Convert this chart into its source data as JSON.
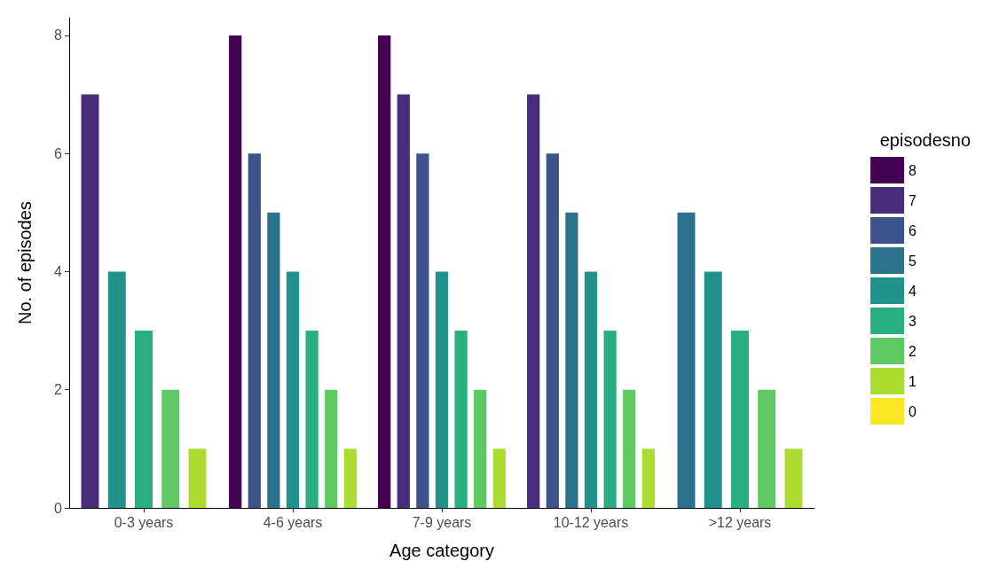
{
  "chart_data": {
    "type": "bar",
    "xlabel": "Age category",
    "ylabel": "No. of episodes",
    "legend_title": "episodesno",
    "categories": [
      "0-3 years",
      "4-6 years",
      "7-9 years",
      "10-12 years",
      ">12 years"
    ],
    "series": [
      {
        "name": "8",
        "color": "#440154",
        "values": [
          null,
          8,
          8,
          null,
          null
        ]
      },
      {
        "name": "7",
        "color": "#472d7b",
        "values": [
          7,
          null,
          7,
          7,
          null
        ]
      },
      {
        "name": "6",
        "color": "#3b528b",
        "values": [
          null,
          6,
          6,
          6,
          null
        ]
      },
      {
        "name": "5",
        "color": "#2c728e",
        "values": [
          null,
          5,
          null,
          5,
          5
        ]
      },
      {
        "name": "4",
        "color": "#21918c",
        "values": [
          4,
          4,
          4,
          4,
          4
        ]
      },
      {
        "name": "3",
        "color": "#28ae80",
        "values": [
          3,
          3,
          3,
          3,
          3
        ]
      },
      {
        "name": "2",
        "color": "#5ec962",
        "values": [
          2,
          2,
          2,
          2,
          2
        ]
      },
      {
        "name": "1",
        "color": "#addc30",
        "values": [
          1,
          1,
          1,
          1,
          1
        ]
      },
      {
        "name": "0",
        "color": "#fde725",
        "values": [
          null,
          null,
          null,
          null,
          null
        ]
      }
    ],
    "ylim": [
      0,
      8.3
    ],
    "yticks": [
      0,
      2,
      4,
      6,
      8
    ],
    "grid": false,
    "legend": "right"
  }
}
